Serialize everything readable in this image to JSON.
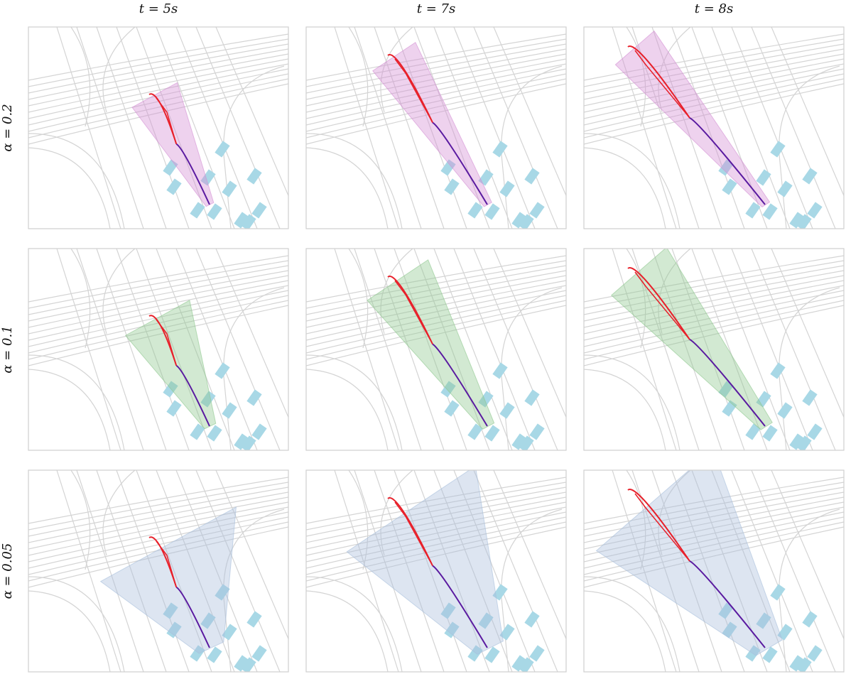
{
  "columns": [
    "t = 5s",
    "t = 7s",
    "t = 8s"
  ],
  "rows": [
    "α = 0.2",
    "α = 0.1",
    "α = 0.05"
  ]
}
